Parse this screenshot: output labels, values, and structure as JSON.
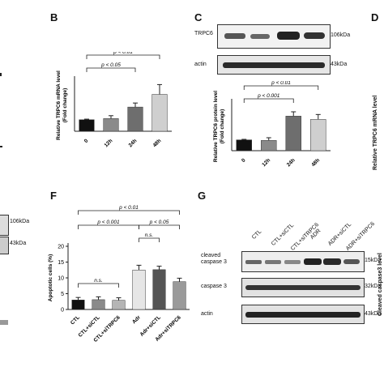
{
  "panel_labels": {
    "B": "B",
    "C": "C",
    "D": "D",
    "F": "F",
    "G": "G"
  },
  "left_edge": {
    "kda_upper": "106kDa",
    "kda_lower": "43kDa"
  },
  "panel_c_blot": {
    "rows": [
      {
        "name": "TRPC6",
        "kda": "106kDa"
      },
      {
        "name": "actin",
        "kda": "43kDa"
      }
    ]
  },
  "panel_d_ylabel": "Relative TRPC6 mRNA level",
  "panel_g_blot": {
    "lanes": [
      "CTL",
      "CTL+siCTL",
      "CTL+siTRPC6",
      "ADR",
      "ADR+siCTL",
      "ADR+siTRPC6"
    ],
    "rows": [
      {
        "name": "cleaved\ncaspase 3",
        "kda": "15kDa"
      },
      {
        "name": "caspase 3",
        "kda": "32kDa"
      },
      {
        "name": "actin",
        "kda": "43kDa"
      }
    ],
    "side_ylabel": "Cleaved caspase3 level"
  },
  "chart_data": [
    {
      "id": "B",
      "type": "bar",
      "categories": [
        "0",
        "12h",
        "24h",
        "48h"
      ],
      "values": [
        1.0,
        1.1,
        2.1,
        3.2
      ],
      "errors": [
        0.05,
        0.25,
        0.35,
        0.85
      ],
      "colors": [
        "#111111",
        "#8a8a8a",
        "#6e6e6e",
        "#cfcfcf"
      ],
      "ylabel": "Relative TRPC6 mRNA level\n(Fold change)",
      "ylim": [
        0,
        4.5
      ],
      "annotations": [
        {
          "text": "p < 0.01",
          "from": 0,
          "to": 3
        },
        {
          "text": "p < 0.05",
          "from": 0,
          "to": 2
        }
      ]
    },
    {
      "id": "C",
      "type": "bar",
      "categories": [
        "0",
        "12h",
        "24h",
        "48h"
      ],
      "values": [
        1.0,
        0.95,
        3.2,
        2.9
      ],
      "errors": [
        0.05,
        0.25,
        0.4,
        0.45
      ],
      "colors": [
        "#111111",
        "#8a8a8a",
        "#6e6e6e",
        "#cfcfcf"
      ],
      "ylabel": "Relative TRPC6 protein level\n(Fold change)",
      "ylim": [
        0,
        4.5
      ],
      "annotations": [
        {
          "text": "p < 0.01",
          "from": 0,
          "to": 3
        },
        {
          "text": "p < 0.001",
          "from": 0,
          "to": 2
        }
      ]
    },
    {
      "id": "F",
      "type": "bar",
      "categories": [
        "CTL",
        "CTL+siCTL",
        "CTL+siTRPC6",
        "Adr",
        "Adr+siCTL",
        "Adr+siTRPC6"
      ],
      "values": [
        3.0,
        3.1,
        2.9,
        12.5,
        12.6,
        8.8
      ],
      "errors": [
        0.8,
        0.9,
        0.8,
        1.5,
        1.1,
        1.1
      ],
      "colors": [
        "#111111",
        "#8a8a8a",
        "#b5b5b5",
        "#e6e6e6",
        "#555555",
        "#9a9a9a"
      ],
      "ylabel": "Apoptotic cells (%)",
      "ylim": [
        0,
        20
      ],
      "yticks": [
        0,
        5,
        10,
        15,
        20
      ],
      "annotations": [
        {
          "text": "p < 0.01",
          "from": 0,
          "to": 5
        },
        {
          "text": "p < 0.001",
          "from": 0,
          "to": 3
        },
        {
          "text": "p < 0.05",
          "from": 3,
          "to": 5
        },
        {
          "text": "n.s.",
          "from": 3,
          "to": 4
        },
        {
          "text": "n.s.",
          "from": 0,
          "to": 2
        }
      ]
    }
  ]
}
